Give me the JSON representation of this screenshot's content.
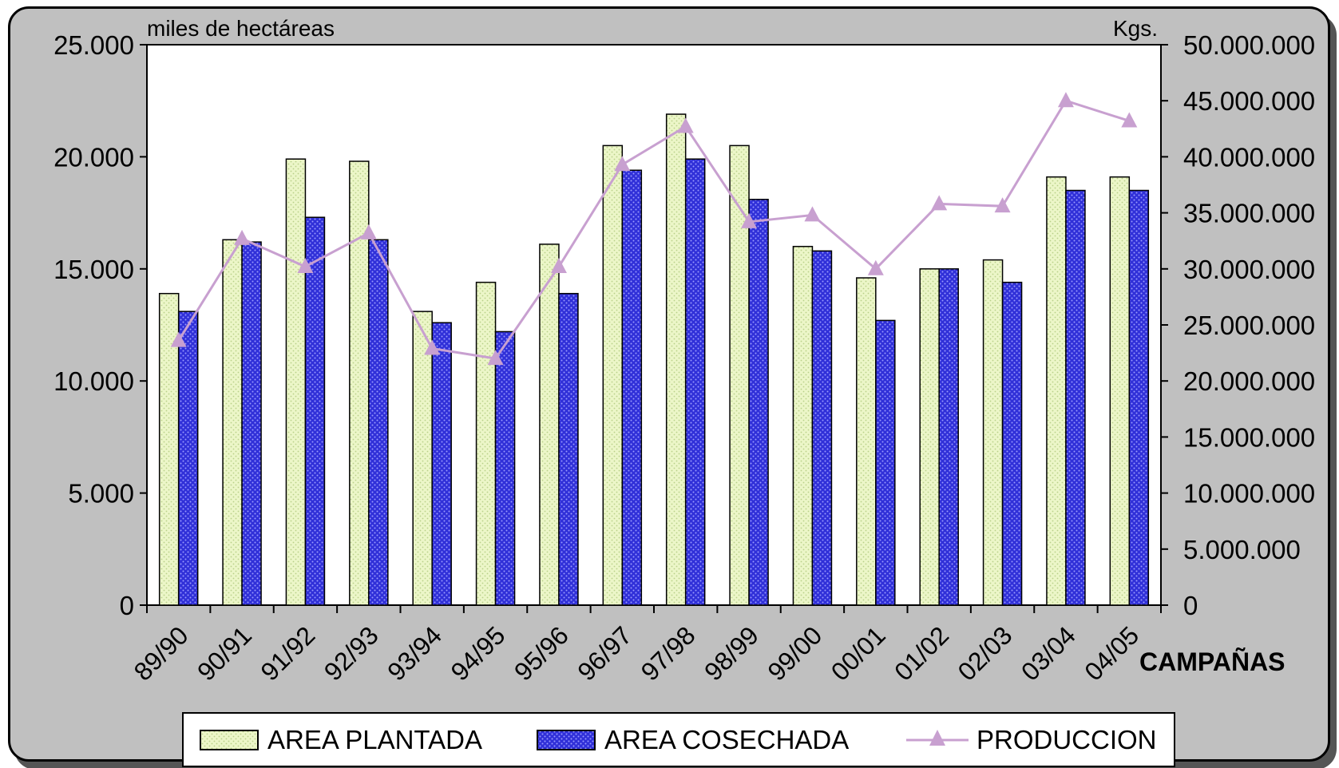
{
  "chart_data": {
    "type": "bar",
    "categories": [
      "89/90",
      "90/91",
      "91/92",
      "92/93",
      "93/94",
      "94/95",
      "95/96",
      "96/97",
      "97/98",
      "98/99",
      "99/00",
      "00/01",
      "01/02",
      "02/03",
      "03/04",
      "04/05"
    ],
    "series": [
      {
        "name": "AREA PLANTADA",
        "type": "bar",
        "axis": "left",
        "color": "#eaf5c4",
        "values": [
          13900,
          16300,
          19900,
          19800,
          13100,
          14400,
          16100,
          20500,
          21900,
          20500,
          16000,
          14600,
          15000,
          15400,
          19100,
          19100
        ]
      },
      {
        "name": "AREA COSECHADA",
        "type": "bar",
        "axis": "left",
        "color": "#3a3ae0",
        "values": [
          13100,
          16200,
          17300,
          16300,
          12600,
          12200,
          13900,
          19400,
          19900,
          18100,
          15800,
          12700,
          15000,
          14400,
          18500,
          18500
        ]
      },
      {
        "name": "PRODUCCION",
        "type": "line",
        "axis": "right",
        "color": "#c8a0d0",
        "values": [
          23600000,
          32700000,
          30200000,
          33200000,
          22900000,
          22000000,
          30200000,
          39300000,
          42700000,
          34200000,
          34800000,
          30000000,
          35800000,
          35600000,
          45000000,
          43200000
        ]
      }
    ],
    "y_left": {
      "label": "miles de hectáreas",
      "ylim": [
        0,
        25000
      ],
      "ticks": [
        "0",
        "5.000",
        "10.000",
        "15.000",
        "20.000",
        "25.000"
      ]
    },
    "y_right": {
      "label": "Kgs.",
      "ylim": [
        0,
        50000000
      ],
      "ticks": [
        "0",
        "5.000.000",
        "10.000.000",
        "15.000.000",
        "20.000.000",
        "25.000.000",
        "30.000.000",
        "35.000.000",
        "40.000.000",
        "45.000.000",
        "50.000.000"
      ]
    },
    "xlabel": "CAMPAÑAS",
    "legend_position": "bottom",
    "grid": false
  }
}
